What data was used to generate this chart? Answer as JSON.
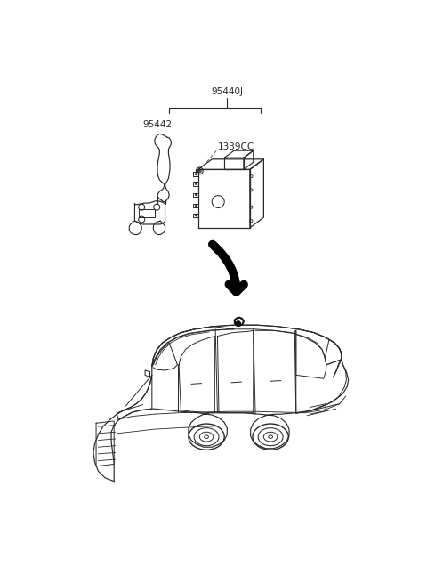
{
  "background_color": "#ffffff",
  "line_color": "#2a2a2a",
  "label_95440J": "95440J",
  "label_95442": "95442",
  "label_1339CC": "1339CC",
  "label_font_size": 7.5,
  "fig_width": 4.8,
  "fig_height": 6.56,
  "dpi": 100
}
